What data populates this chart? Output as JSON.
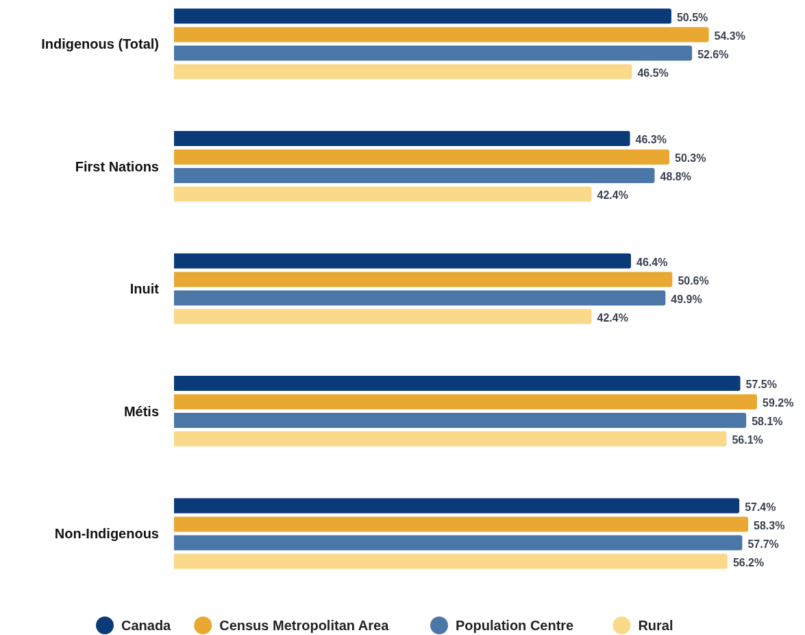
{
  "chart_data": {
    "type": "bar",
    "orientation": "horizontal",
    "legend": "bottom",
    "categories": [
      "Indigenous (Total)",
      "First Nations",
      "Inuit",
      "Métis",
      "Non-Indigenous"
    ],
    "series": [
      {
        "name": "Canada",
        "color": "#0b3a78",
        "values": [
          50.5,
          46.3,
          46.4,
          57.5,
          57.4
        ],
        "value_labels": [
          "50.5%",
          "46.3%",
          "46.4%",
          "57.5%",
          "57.4%"
        ]
      },
      {
        "name": "Census Metropolitan Area",
        "color": "#e8a831",
        "values": [
          54.3,
          50.3,
          50.6,
          59.2,
          58.3
        ],
        "value_labels": [
          "54.3%",
          "50.3%",
          "50.6%",
          "59.2%",
          "58.3%"
        ]
      },
      {
        "name": "Population Centre",
        "color": "#4a77a8",
        "values": [
          52.6,
          48.8,
          49.9,
          58.1,
          57.7
        ],
        "value_labels": [
          "52.6%",
          "48.8%",
          "49.9%",
          "58.1%",
          "57.7%"
        ]
      },
      {
        "name": "Rural",
        "color": "#fbd98b",
        "values": [
          46.5,
          42.4,
          42.4,
          56.1,
          56.2
        ],
        "value_labels": [
          "46.5%",
          "42.4%",
          "42.4%",
          "56.1%",
          "56.2%"
        ]
      }
    ]
  }
}
